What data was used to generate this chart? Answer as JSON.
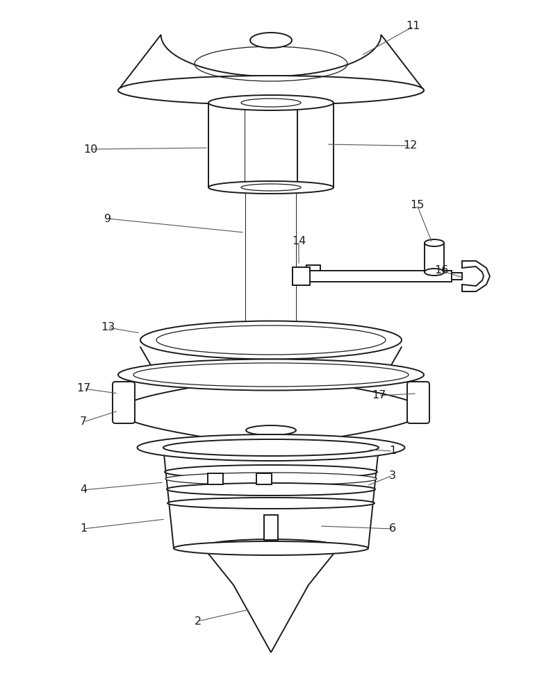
{
  "background_color": "#ffffff",
  "line_color": "#1a1a1a",
  "label_color": "#1a1a1a",
  "leader_color": "#555555",
  "figsize": [
    7.93,
    10.0
  ],
  "dpi": 100
}
